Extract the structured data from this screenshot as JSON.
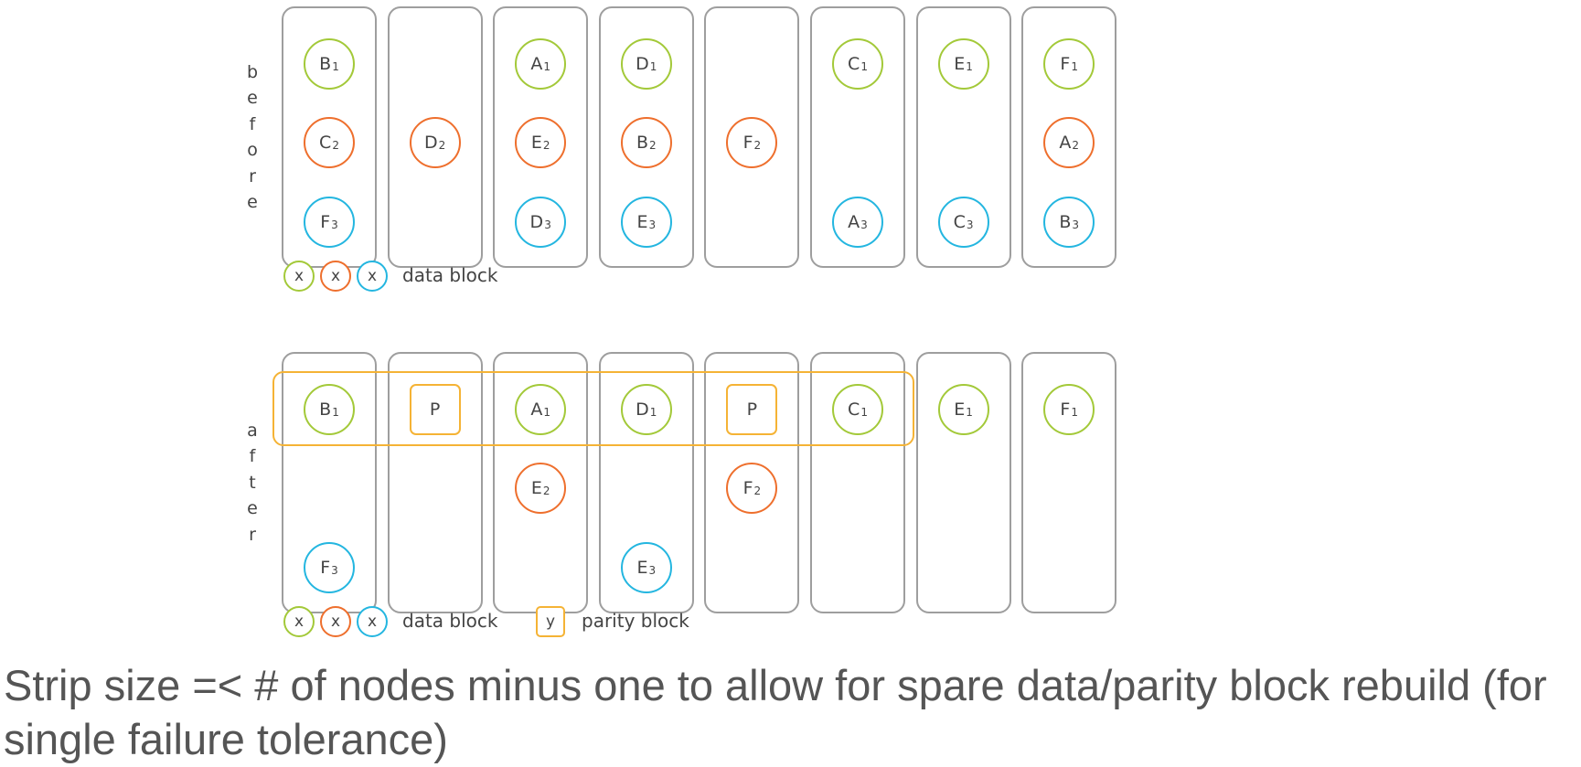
{
  "colors": {
    "green": "#a3c939",
    "orange": "#ee6f2d",
    "blue": "#24b6e0",
    "parity": "#f5b335",
    "column_border": "#9e9e9e"
  },
  "before": {
    "label": "before",
    "columns": [
      [
        {
          "letter": "B",
          "sub": "1",
          "color": "green",
          "row": 0
        },
        {
          "letter": "C",
          "sub": "2",
          "color": "orange",
          "row": 1
        },
        {
          "letter": "F",
          "sub": "3",
          "color": "blue",
          "row": 2
        }
      ],
      [
        {
          "letter": "D",
          "sub": "2",
          "color": "orange",
          "row": 1
        }
      ],
      [
        {
          "letter": "A",
          "sub": "1",
          "color": "green",
          "row": 0
        },
        {
          "letter": "E",
          "sub": "2",
          "color": "orange",
          "row": 1
        },
        {
          "letter": "D",
          "sub": "3",
          "color": "blue",
          "row": 2
        }
      ],
      [
        {
          "letter": "D",
          "sub": "1",
          "color": "green",
          "row": 0
        },
        {
          "letter": "B",
          "sub": "2",
          "color": "orange",
          "row": 1
        },
        {
          "letter": "E",
          "sub": "3",
          "color": "blue",
          "row": 2
        }
      ],
      [
        {
          "letter": "F",
          "sub": "2",
          "color": "orange",
          "row": 1
        }
      ],
      [
        {
          "letter": "C",
          "sub": "1",
          "color": "green",
          "row": 0
        },
        {
          "letter": "A",
          "sub": "3",
          "color": "blue",
          "row": 2
        }
      ],
      [
        {
          "letter": "E",
          "sub": "1",
          "color": "green",
          "row": 0
        },
        {
          "letter": "C",
          "sub": "3",
          "color": "blue",
          "row": 2
        }
      ],
      [
        {
          "letter": "F",
          "sub": "1",
          "color": "green",
          "row": 0
        },
        {
          "letter": "A",
          "sub": "2",
          "color": "orange",
          "row": 1
        },
        {
          "letter": "B",
          "sub": "3",
          "color": "blue",
          "row": 2
        }
      ]
    ],
    "legend": {
      "symbol": "x",
      "data_label": "data block"
    }
  },
  "after": {
    "label": "after",
    "columns": [
      [
        {
          "letter": "B",
          "sub": "1",
          "color": "green",
          "row": 0
        },
        {
          "letter": "F",
          "sub": "3",
          "color": "blue",
          "row": 2
        }
      ],
      [
        {
          "letter": "P",
          "sub": "",
          "color": "parity",
          "row": 0,
          "parity": true
        }
      ],
      [
        {
          "letter": "A",
          "sub": "1",
          "color": "green",
          "row": 0
        },
        {
          "letter": "E",
          "sub": "2",
          "color": "orange",
          "row": 1
        }
      ],
      [
        {
          "letter": "D",
          "sub": "1",
          "color": "green",
          "row": 0
        },
        {
          "letter": "E",
          "sub": "3",
          "color": "blue",
          "row": 2
        }
      ],
      [
        {
          "letter": "P",
          "sub": "",
          "color": "parity",
          "row": 0,
          "parity": true
        },
        {
          "letter": "F",
          "sub": "2",
          "color": "orange",
          "row": 1
        }
      ],
      [
        {
          "letter": "C",
          "sub": "1",
          "color": "green",
          "row": 0
        }
      ],
      [
        {
          "letter": "E",
          "sub": "1",
          "color": "green",
          "row": 0
        }
      ],
      [
        {
          "letter": "F",
          "sub": "1",
          "color": "green",
          "row": 0
        }
      ]
    ],
    "legend": {
      "symbol": "x",
      "data_label": "data block",
      "parity_symbol": "y",
      "parity_label": "parity block"
    }
  },
  "caption": "Strip size =< # of nodes minus one to allow for spare data/parity block rebuild (for single failure tolerance)"
}
